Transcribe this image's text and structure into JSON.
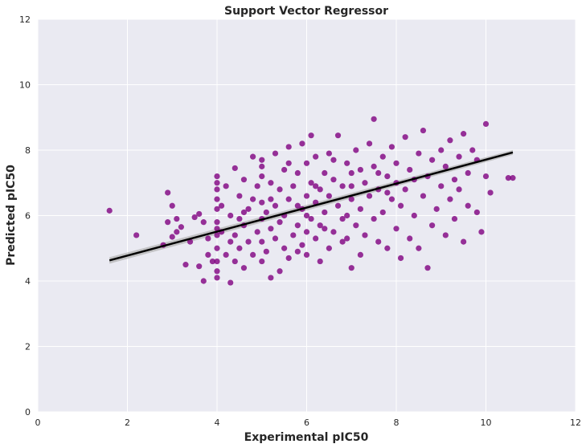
{
  "chart_data": {
    "type": "scatter",
    "title": "Support Vector Regressor",
    "xlabel": "Experimental pIC50",
    "ylabel": "Predicted pIC50",
    "xlim": [
      0,
      12
    ],
    "ylim": [
      0,
      12
    ],
    "xticks": [
      "0",
      "2",
      "4",
      "6",
      "8",
      "10",
      "12"
    ],
    "yticks": [
      "0",
      "2",
      "4",
      "6",
      "8",
      "10",
      "12"
    ],
    "grid": true,
    "colors": {
      "points": "#800080",
      "fit_line": "#000000",
      "ci_band": "#b0b0b0",
      "background": "#eaeaf2",
      "grid": "#ffffff"
    },
    "series": [
      {
        "points": [
          [
            1.6,
            6.15
          ],
          [
            2.2,
            5.4
          ],
          [
            2.8,
            5.1
          ],
          [
            2.9,
            6.7
          ],
          [
            2.9,
            5.8
          ],
          [
            3.0,
            6.3
          ],
          [
            3.0,
            5.35
          ],
          [
            3.1,
            5.9
          ],
          [
            3.1,
            5.5
          ],
          [
            3.2,
            5.65
          ],
          [
            3.3,
            4.5
          ],
          [
            3.4,
            5.2
          ],
          [
            3.5,
            5.95
          ],
          [
            3.6,
            4.45
          ],
          [
            3.6,
            6.05
          ],
          [
            3.7,
            4.0
          ],
          [
            3.7,
            5.8
          ],
          [
            3.8,
            4.8
          ],
          [
            3.8,
            5.3
          ],
          [
            3.9,
            4.6
          ],
          [
            4.0,
            4.3
          ],
          [
            4.0,
            4.6
          ],
          [
            4.0,
            5.0
          ],
          [
            4.0,
            5.4
          ],
          [
            4.0,
            5.8
          ],
          [
            4.0,
            6.2
          ],
          [
            4.0,
            6.5
          ],
          [
            4.0,
            6.8
          ],
          [
            4.0,
            7.0
          ],
          [
            4.0,
            7.2
          ],
          [
            4.0,
            4.1
          ],
          [
            4.0,
            5.6
          ],
          [
            4.1,
            5.5
          ],
          [
            4.1,
            6.3
          ],
          [
            4.2,
            4.8
          ],
          [
            4.2,
            6.9
          ],
          [
            4.3,
            3.95
          ],
          [
            4.3,
            5.2
          ],
          [
            4.3,
            6.0
          ],
          [
            4.4,
            4.6
          ],
          [
            4.4,
            5.4
          ],
          [
            4.4,
            7.45
          ],
          [
            4.5,
            5.0
          ],
          [
            4.5,
            6.6
          ],
          [
            4.5,
            5.9
          ],
          [
            4.6,
            4.4
          ],
          [
            4.6,
            5.7
          ],
          [
            4.6,
            7.1
          ],
          [
            4.7,
            5.2
          ],
          [
            4.7,
            6.2
          ],
          [
            4.8,
            4.8
          ],
          [
            4.8,
            6.5
          ],
          [
            4.8,
            7.8
          ],
          [
            4.9,
            5.5
          ],
          [
            4.9,
            6.9
          ],
          [
            5.0,
            4.6
          ],
          [
            5.0,
            5.9
          ],
          [
            5.0,
            7.2
          ],
          [
            5.0,
            7.5
          ],
          [
            5.0,
            6.4
          ],
          [
            5.0,
            5.2
          ],
          [
            5.0,
            7.7
          ],
          [
            5.1,
            4.9
          ],
          [
            5.1,
            6.1
          ],
          [
            5.2,
            5.6
          ],
          [
            5.2,
            7.0
          ],
          [
            5.2,
            4.1
          ],
          [
            5.3,
            6.3
          ],
          [
            5.3,
            5.3
          ],
          [
            5.3,
            7.9
          ],
          [
            5.4,
            4.3
          ],
          [
            5.4,
            5.8
          ],
          [
            5.4,
            6.8
          ],
          [
            5.5,
            5.0
          ],
          [
            5.5,
            6.0
          ],
          [
            5.5,
            7.4
          ],
          [
            5.6,
            4.7
          ],
          [
            5.6,
            6.5
          ],
          [
            5.6,
            8.1
          ],
          [
            5.7,
            5.4
          ],
          [
            5.7,
            6.9
          ],
          [
            5.8,
            5.7
          ],
          [
            5.8,
            7.3
          ],
          [
            5.8,
            4.9
          ],
          [
            5.9,
            6.2
          ],
          [
            5.9,
            8.2
          ],
          [
            5.9,
            5.1
          ],
          [
            6.0,
            5.5
          ],
          [
            6.0,
            6.6
          ],
          [
            6.0,
            7.6
          ],
          [
            6.0,
            4.8
          ],
          [
            6.0,
            6.0
          ],
          [
            6.1,
            7.0
          ],
          [
            6.1,
            5.9
          ],
          [
            6.1,
            8.45
          ],
          [
            6.2,
            5.3
          ],
          [
            6.2,
            6.4
          ],
          [
            6.2,
            7.8
          ],
          [
            6.3,
            4.6
          ],
          [
            6.3,
            6.8
          ],
          [
            6.3,
            5.7
          ],
          [
            6.4,
            7.3
          ],
          [
            6.4,
            6.1
          ],
          [
            6.5,
            5.0
          ],
          [
            6.5,
            6.6
          ],
          [
            6.5,
            7.9
          ],
          [
            6.6,
            5.5
          ],
          [
            6.6,
            7.1
          ],
          [
            6.7,
            6.3
          ],
          [
            6.7,
            8.45
          ],
          [
            6.8,
            5.2
          ],
          [
            6.8,
            6.9
          ],
          [
            6.9,
            7.6
          ],
          [
            6.9,
            6.0
          ],
          [
            7.0,
            4.4
          ],
          [
            7.0,
            6.5
          ],
          [
            7.0,
            7.3
          ],
          [
            7.1,
            5.7
          ],
          [
            7.1,
            8.0
          ],
          [
            7.2,
            6.2
          ],
          [
            7.2,
            4.8
          ],
          [
            7.3,
            7.0
          ],
          [
            7.3,
            5.4
          ],
          [
            7.4,
            6.6
          ],
          [
            7.4,
            8.2
          ],
          [
            7.5,
            8.95
          ],
          [
            7.5,
            5.9
          ],
          [
            7.5,
            7.5
          ],
          [
            7.6,
            5.2
          ],
          [
            7.6,
            6.8
          ],
          [
            7.7,
            7.8
          ],
          [
            7.7,
            6.1
          ],
          [
            7.8,
            5.0
          ],
          [
            7.8,
            7.2
          ],
          [
            7.9,
            6.5
          ],
          [
            7.9,
            8.1
          ],
          [
            8.0,
            5.6
          ],
          [
            8.0,
            7.0
          ],
          [
            8.0,
            7.6
          ],
          [
            8.1,
            4.7
          ],
          [
            8.1,
            6.3
          ],
          [
            8.2,
            8.4
          ],
          [
            8.2,
            6.8
          ],
          [
            8.3,
            5.3
          ],
          [
            8.3,
            7.4
          ],
          [
            8.4,
            6.0
          ],
          [
            8.5,
            7.9
          ],
          [
            8.5,
            5.0
          ],
          [
            8.6,
            6.6
          ],
          [
            8.6,
            8.6
          ],
          [
            8.7,
            4.4
          ],
          [
            8.7,
            7.2
          ],
          [
            8.8,
            5.7
          ],
          [
            8.8,
            7.7
          ],
          [
            8.9,
            6.2
          ],
          [
            9.0,
            8.0
          ],
          [
            9.0,
            6.9
          ],
          [
            9.1,
            5.4
          ],
          [
            9.1,
            7.5
          ],
          [
            9.2,
            6.5
          ],
          [
            9.2,
            8.3
          ],
          [
            9.3,
            7.1
          ],
          [
            9.3,
            5.9
          ],
          [
            9.4,
            7.8
          ],
          [
            9.4,
            6.8
          ],
          [
            9.5,
            5.2
          ],
          [
            9.5,
            8.5
          ],
          [
            9.6,
            7.3
          ],
          [
            9.6,
            6.3
          ],
          [
            9.7,
            8.0
          ],
          [
            9.8,
            6.1
          ],
          [
            9.8,
            7.7
          ],
          [
            9.9,
            5.5
          ],
          [
            10.0,
            8.8
          ],
          [
            10.0,
            7.2
          ],
          [
            10.1,
            6.7
          ],
          [
            10.5,
            7.15
          ],
          [
            10.6,
            7.15
          ],
          [
            6.4,
            5.6
          ],
          [
            6.8,
            5.9
          ],
          [
            7.2,
            7.4
          ],
          [
            5.6,
            7.6
          ],
          [
            6.6,
            7.7
          ],
          [
            7.8,
            6.7
          ],
          [
            5.2,
            6.5
          ],
          [
            4.6,
            6.1
          ],
          [
            8.4,
            7.1
          ],
          [
            7.0,
            6.9
          ],
          [
            6.2,
            6.9
          ],
          [
            5.8,
            6.3
          ],
          [
            6.9,
            5.3
          ],
          [
            7.6,
            7.3
          ]
        ]
      }
    ],
    "fit_line": {
      "x": [
        1.6,
        10.6
      ],
      "y": [
        4.63,
        7.93
      ]
    }
  }
}
